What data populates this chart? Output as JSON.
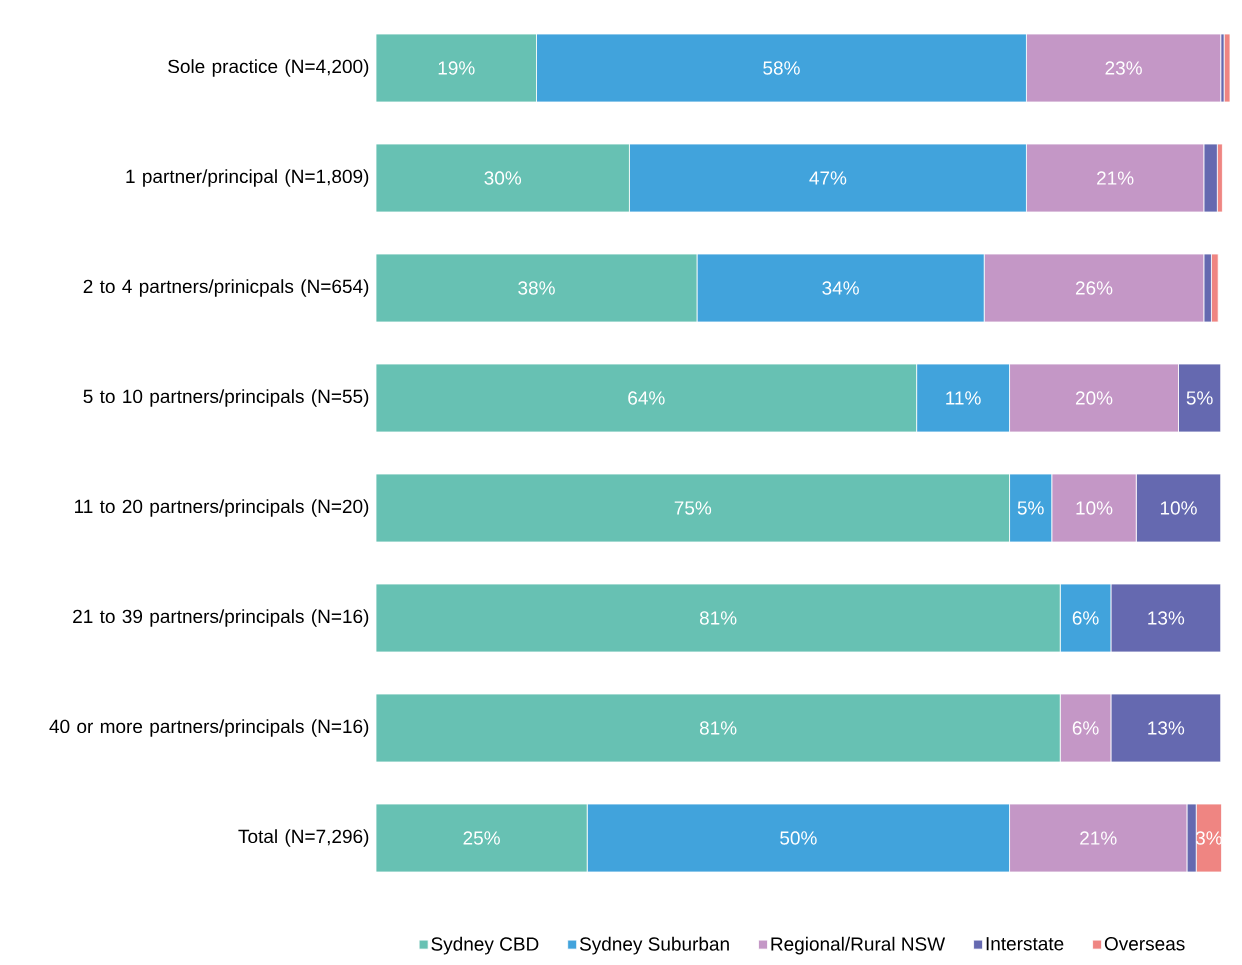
{
  "chart_data": {
    "type": "bar",
    "orientation": "horizontal",
    "stacked": true,
    "categories": [
      "Sole practice (N=4,200)",
      "1 partner/principal (N=1,809)",
      "2 to 4 partners/prinicpals (N=654)",
      "5 to 10 partners/principals (N=55)",
      "11 to 20 partners/principals (N=20)",
      "21 to 39 partners/principals (N=16)",
      "40 or more partners/principals (N=16)",
      "Total (N=7,296)"
    ],
    "series": [
      {
        "name": "Sydney CBD",
        "color": "#67c1b3",
        "values": [
          19,
          30,
          38,
          64,
          75,
          81,
          81,
          25
        ],
        "value_labels": [
          "19%",
          "30%",
          "38%",
          "64%",
          "75%",
          "81%",
          "81%",
          "25%"
        ]
      },
      {
        "name": "Sydney Suburban",
        "color": "#41a3dc",
        "values": [
          58,
          47,
          34,
          11,
          5,
          6,
          null,
          50
        ],
        "value_labels": [
          "58%",
          "47%",
          "34%",
          "11%",
          "5%",
          "6%",
          null,
          "50%"
        ]
      },
      {
        "name": "Regional/Rural NSW",
        "color": "#c497c6",
        "values": [
          23,
          21,
          26,
          20,
          10,
          null,
          6,
          21
        ],
        "value_labels": [
          "23%",
          "21%",
          "26%",
          "20%",
          "10%",
          null,
          "6%",
          "21%"
        ]
      },
      {
        "name": "Interstate",
        "color": "#6569b0",
        "values": [
          0.4,
          1.6,
          0.9,
          5,
          10,
          13,
          13,
          1.1
        ],
        "value_labels": [
          null,
          null,
          null,
          "5%",
          "10%",
          "13%",
          "13%",
          null
        ]
      },
      {
        "name": "Overseas",
        "color": "#ef8582",
        "values": [
          0.7,
          0.6,
          0.8,
          null,
          null,
          null,
          null,
          3
        ],
        "value_labels": [
          null,
          null,
          null,
          null,
          null,
          null,
          null,
          "3%"
        ]
      }
    ],
    "legend": "bottom"
  }
}
